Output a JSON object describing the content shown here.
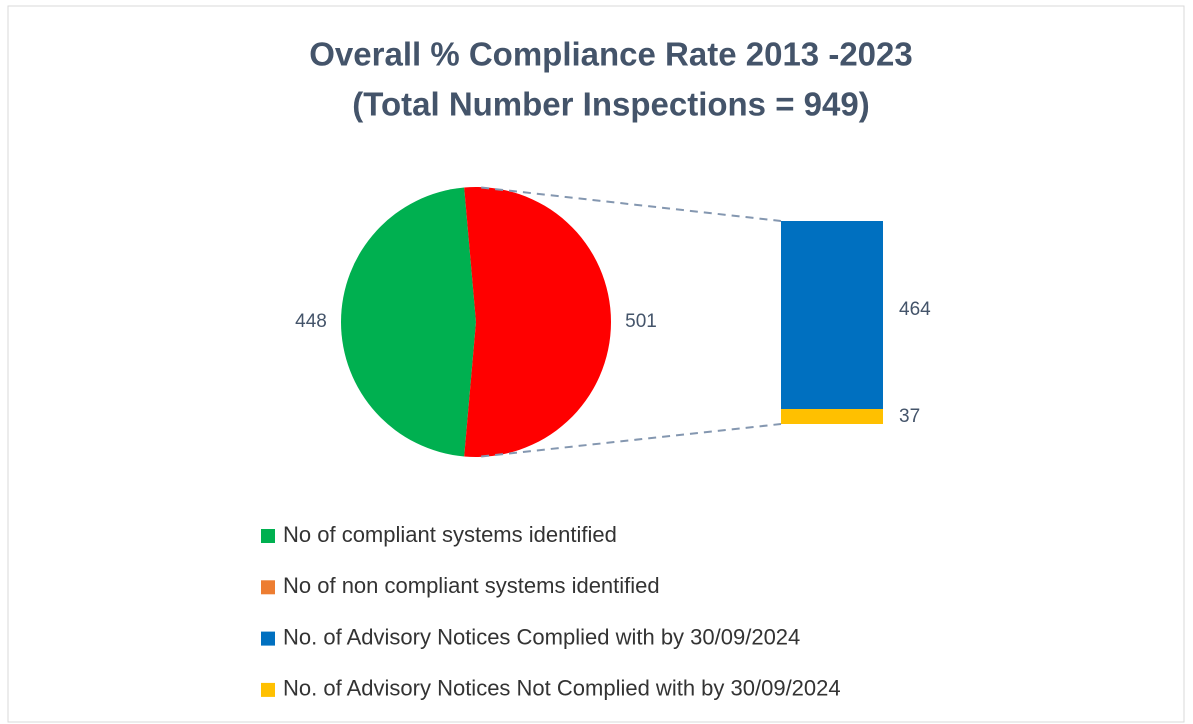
{
  "chart_data": {
    "type": "pie-of-bar",
    "title": "Overall % Compliance Rate 2013 -2023",
    "subtitle": "(Total Number Inspections = 949)",
    "slices": [
      {
        "name": "No of compliant systems identified",
        "value": 448,
        "color": "#00b050",
        "legend_color": "#00b050"
      },
      {
        "name": "No of non compliant systems identified",
        "value": 501,
        "color": "#ff0000",
        "legend_color": "#ed7d31"
      }
    ],
    "breakdown_of_slice": 1,
    "breakdown": [
      {
        "name": "No. of Advisory Notices Complied with by 30/09/2024",
        "value": 464,
        "color": "#0070c0"
      },
      {
        "name": "No. of Advisory Notices Not Complied with by 30/09/2024",
        "value": 37,
        "color": "#ffc000"
      }
    ]
  }
}
